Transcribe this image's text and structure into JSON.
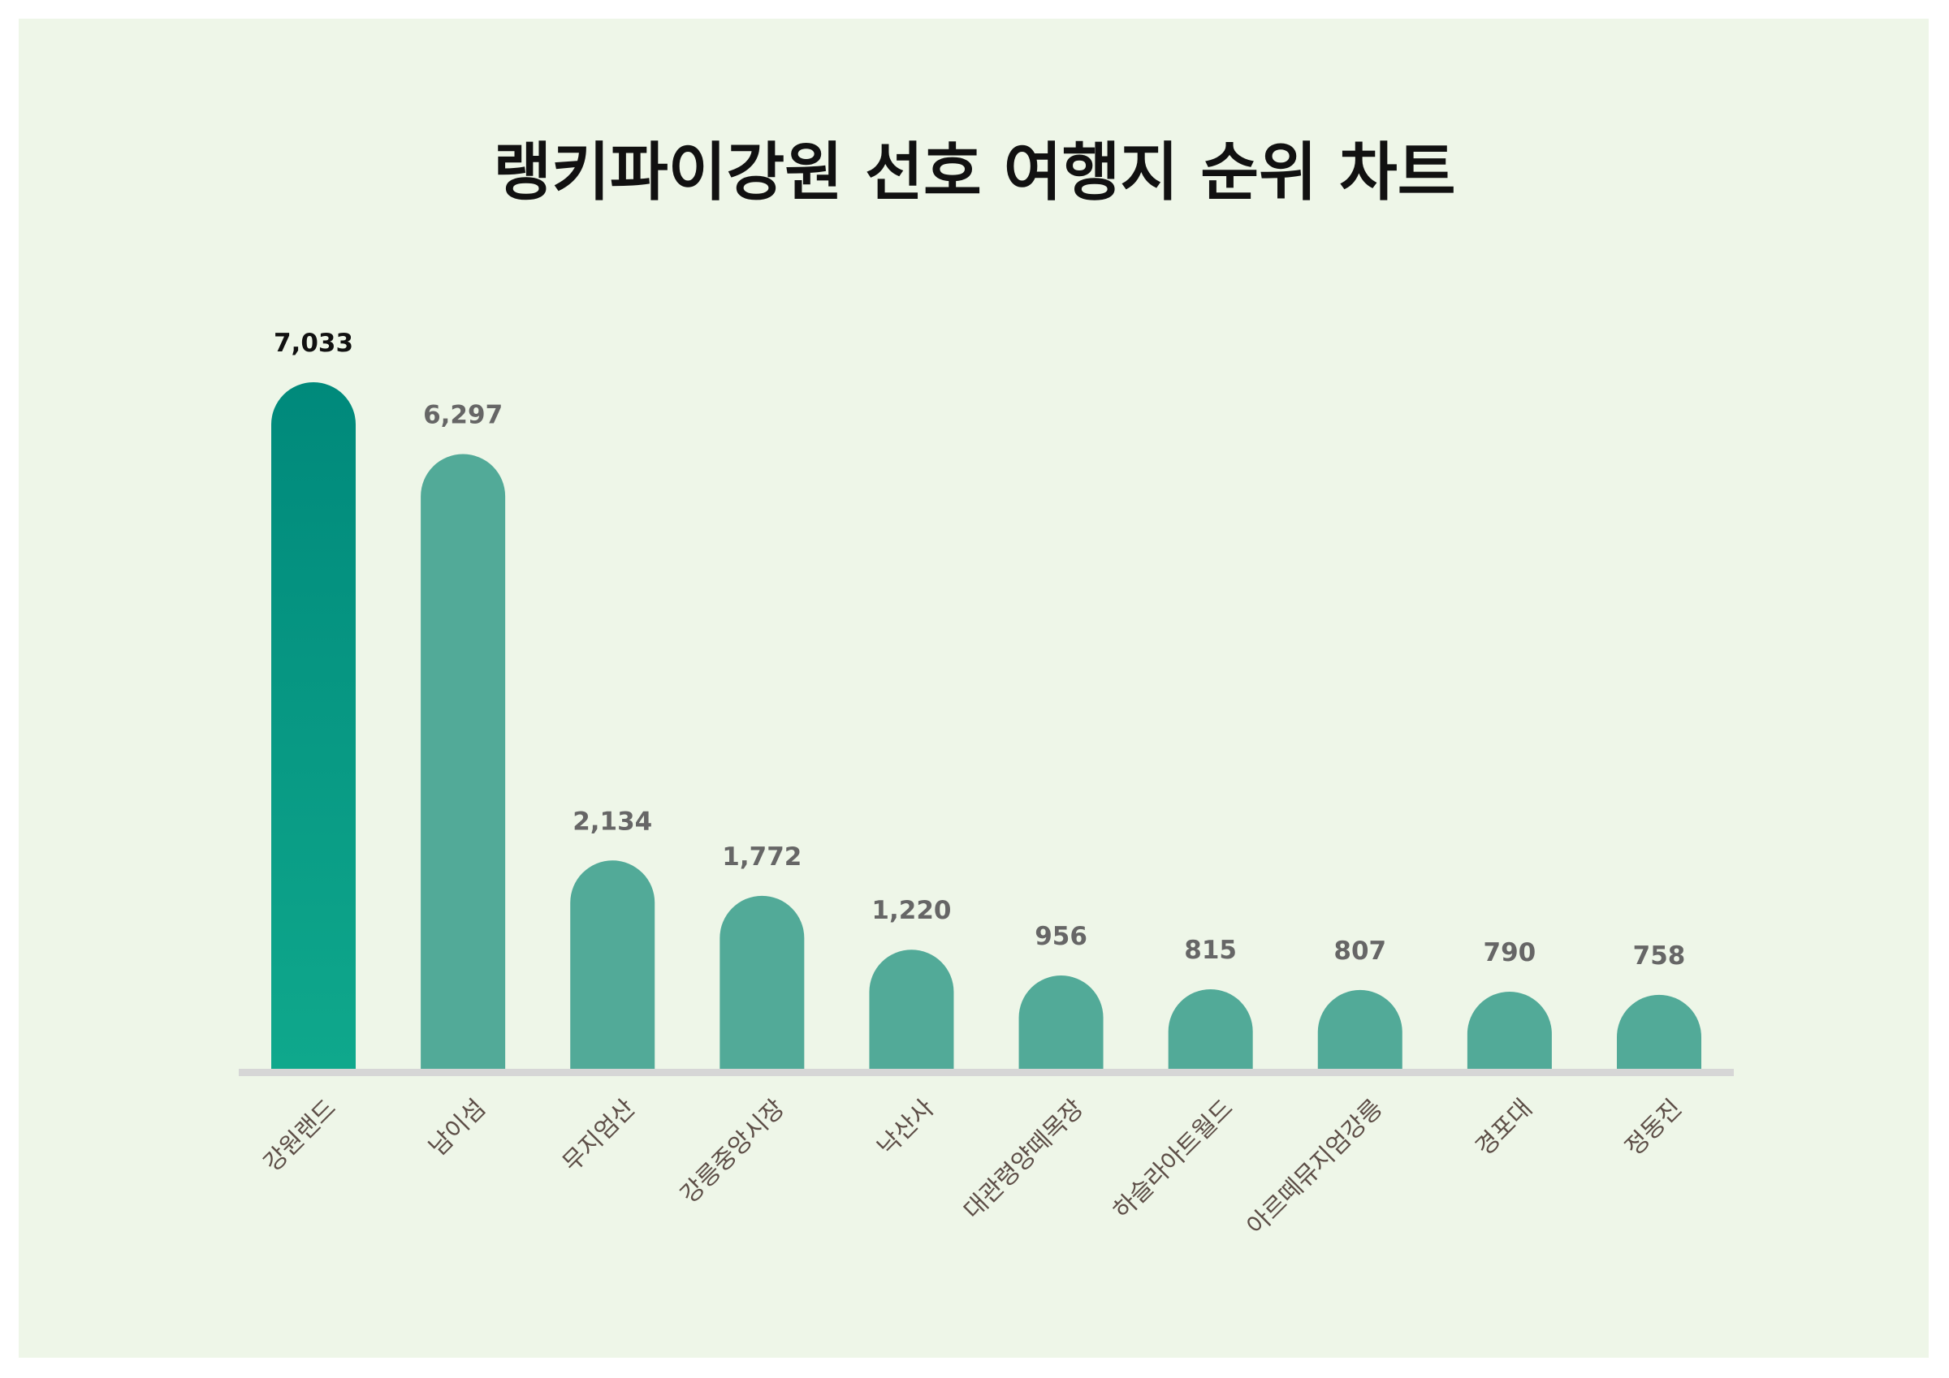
{
  "chart_data": {
    "type": "bar",
    "title": "랭키파이강원 선호 여행지 순위 차트",
    "categories": [
      "강원랜드",
      "남이섬",
      "무지엄산",
      "강릉중앙시장",
      "낙산사",
      "대관령양떼목장",
      "하슬라아트월드",
      "아르떼뮤지엄강릉",
      "경포대",
      "정동진"
    ],
    "values": [
      7033,
      6297,
      2134,
      1772,
      1220,
      956,
      815,
      807,
      790,
      758
    ],
    "value_labels": [
      "7,033",
      "6,297",
      "2,134",
      "1,772",
      "1,220",
      "956",
      "815",
      "807",
      "790",
      "758"
    ],
    "xlabel": "",
    "ylabel": "",
    "grid": false,
    "colors": {
      "top_bar_start": "#00897B",
      "top_bar_end": "#0FA88C",
      "bar": "#52AA98",
      "axis": "#D6D6D6",
      "background": "#EEF6E8",
      "top_label": "#111111",
      "label": "#666666",
      "category_label": "#5D4E47"
    }
  }
}
